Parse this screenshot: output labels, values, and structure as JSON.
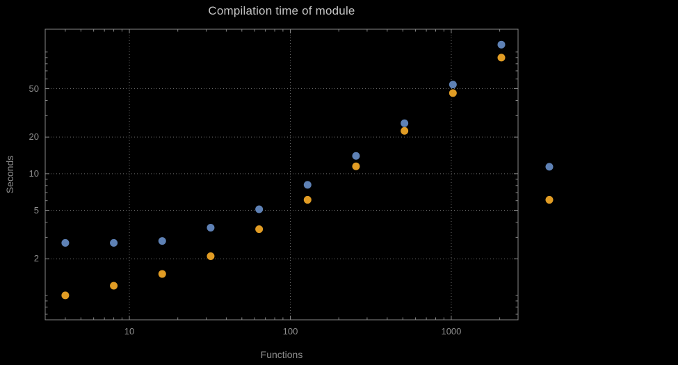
{
  "colors": {
    "background": "#000000",
    "title": "#c2c2c2",
    "axis_label": "#8f8f8f",
    "tick_label": "#8f8f8f",
    "frame": "#888888",
    "grid": "#6e6e6e",
    "blue": "#5E81B5",
    "orange": "#E19C24"
  },
  "chart_data": {
    "type": "scatter",
    "title": "Compilation time of module",
    "xlabel": "Functions",
    "ylabel": "Seconds",
    "x_scale": "log",
    "y_scale": "log",
    "grid": "dotted at major ticks",
    "legend_position": "right-outside",
    "x_range": [
      3.0,
      2600
    ],
    "y_range": [
      0.63,
      154
    ],
    "x_ticks": [
      10,
      100,
      1000
    ],
    "y_ticks": [
      2,
      5,
      10,
      20,
      50
    ],
    "x_minor_ticks": [
      4,
      5,
      6,
      7,
      8,
      9,
      20,
      30,
      40,
      50,
      60,
      70,
      80,
      90,
      200,
      300,
      400,
      500,
      600,
      700,
      800,
      900,
      2000
    ],
    "y_minor_ticks": [
      0.7,
      0.8,
      0.9,
      1,
      3,
      4,
      6,
      7,
      8,
      9,
      30,
      40,
      60,
      70,
      80,
      90,
      100
    ],
    "x": [
      4,
      8,
      16,
      32,
      64,
      128,
      256,
      512,
      1024,
      2048
    ],
    "series": [
      {
        "name": "blue",
        "color": "#5E81B5",
        "values": [
          2.7,
          2.7,
          2.8,
          3.6,
          5.1,
          8.1,
          14,
          26,
          54,
          115
        ]
      },
      {
        "name": "orange",
        "color": "#E19C24",
        "values": [
          1.0,
          1.2,
          1.5,
          2.1,
          3.5,
          6.1,
          11.5,
          22.5,
          46,
          90
        ]
      }
    ],
    "legend_markers": [
      {
        "series": "blue",
        "color": "#5E81B5",
        "value": 11.4
      },
      {
        "series": "orange",
        "color": "#E19C24",
        "value": 6.1
      }
    ]
  }
}
